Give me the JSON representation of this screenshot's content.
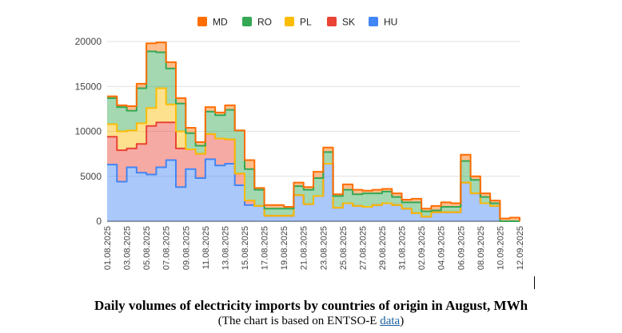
{
  "caption": {
    "title": "Daily volumes of electricity imports by countries of origin in August, MWh",
    "subtitle_before": "(The chart is based on ENTSO-E ",
    "subtitle_link": "data",
    "subtitle_after": ")"
  },
  "chart_data": {
    "type": "area",
    "stacked": true,
    "stepped": true,
    "title": "",
    "xlabel": "",
    "ylabel": "",
    "ylim": [
      0,
      20000
    ],
    "yticks": [
      0,
      5000,
      10000,
      15000,
      20000
    ],
    "grid": true,
    "legend_position": "top",
    "legend_order": [
      "MD",
      "RO",
      "PL",
      "SK",
      "HU"
    ],
    "categories": [
      "01.08.2025",
      "02.08.2025",
      "03.08.2025",
      "04.08.2025",
      "05.08.2025",
      "06.08.2025",
      "07.08.2025",
      "08.08.2025",
      "09.08.2025",
      "10.08.2025",
      "11.08.2025",
      "12.08.2025",
      "13.08.2025",
      "14.08.2025",
      "15.08.2025",
      "16.08.2025",
      "17.08.2025",
      "18.08.2025",
      "19.08.2025",
      "20.08.2025",
      "21.08.2025",
      "22.08.2025",
      "23.08.2025",
      "24.08.2025",
      "25.08.2025",
      "26.08.2025",
      "27.08.2025",
      "28.08.2025",
      "29.08.2025",
      "30.08.2025",
      "31.08.2025",
      "01.09.2025",
      "02.09.2025",
      "03.09.2025",
      "04.09.2025",
      "05.09.2025",
      "06.09.2025",
      "07.09.2025",
      "08.09.2025",
      "09.09.2025",
      "10.09.2025",
      "11.09.2025",
      "12.09.2025"
    ],
    "x_tick_labels": [
      "01.08.2025",
      "03.08.2025",
      "05.08.2025",
      "07.08.2025",
      "09.08.2025",
      "11.08.2025",
      "13.08.2025",
      "15.08.2025",
      "17.08.2025",
      "19.08.2025",
      "21.08.2025",
      "23.08.2025",
      "25.08.2025",
      "27.08.2025",
      "29.08.2025",
      "31.08.2025",
      "02.09.2025",
      "04.09.2025",
      "06.09.2025",
      "08.09.2025",
      "10.09.2025",
      "12.09.2025"
    ],
    "series": [
      {
        "name": "HU",
        "color": "#4285f4",
        "values": [
          6300,
          4400,
          6000,
          5400,
          5200,
          6000,
          6800,
          3800,
          5800,
          4800,
          6900,
          6200,
          6400,
          4000,
          1800,
          1700,
          600,
          600,
          600,
          2900,
          1900,
          2800,
          6400,
          1500,
          2000,
          1700,
          1600,
          1800,
          2000,
          1800,
          1400,
          900,
          500,
          1000,
          1000,
          1000,
          4300,
          3100,
          2000,
          1700,
          0,
          0,
          0
        ]
      },
      {
        "name": "SK",
        "color": "#ea4335",
        "values": [
          3100,
          3500,
          2100,
          3200,
          5400,
          5000,
          4200,
          4300,
          2200,
          2700,
          2800,
          3000,
          2700,
          1300,
          500,
          0,
          0,
          0,
          0,
          0,
          0,
          0,
          0,
          0,
          0,
          0,
          0,
          0,
          0,
          0,
          0,
          0,
          0,
          0,
          0,
          0,
          0,
          0,
          0,
          0,
          0,
          0,
          0
        ]
      },
      {
        "name": "PL",
        "color": "#fbbc04",
        "values": [
          1400,
          2100,
          2000,
          2300,
          2000,
          3800,
          2000,
          1900,
          0,
          0,
          0,
          0,
          0,
          0,
          0,
          0,
          0,
          0,
          0,
          0,
          0,
          0,
          0,
          0,
          0,
          0,
          0,
          0,
          0,
          0,
          0,
          0,
          0,
          0,
          0,
          0,
          0,
          0,
          0,
          0,
          0,
          0,
          0
        ]
      },
      {
        "name": "RO",
        "color": "#34a853",
        "values": [
          2900,
          2700,
          2200,
          3900,
          6300,
          4000,
          4000,
          3100,
          1800,
          900,
          2500,
          2600,
          3300,
          4800,
          3500,
          1800,
          800,
          800,
          800,
          1000,
          1600,
          2000,
          1300,
          1300,
          1500,
          1300,
          1500,
          1300,
          1300,
          900,
          700,
          1200,
          600,
          200,
          600,
          600,
          2400,
          1500,
          700,
          300,
          0,
          0,
          0
        ]
      },
      {
        "name": "MD",
        "color": "#ff6d01",
        "values": [
          200,
          200,
          500,
          500,
          900,
          1100,
          700,
          600,
          600,
          400,
          500,
          300,
          500,
          0,
          1000,
          200,
          400,
          400,
          200,
          400,
          300,
          700,
          500,
          200,
          600,
          500,
          300,
          400,
          300,
          400,
          300,
          400,
          300,
          500,
          500,
          400,
          700,
          400,
          400,
          300,
          300,
          400,
          0
        ]
      }
    ]
  }
}
